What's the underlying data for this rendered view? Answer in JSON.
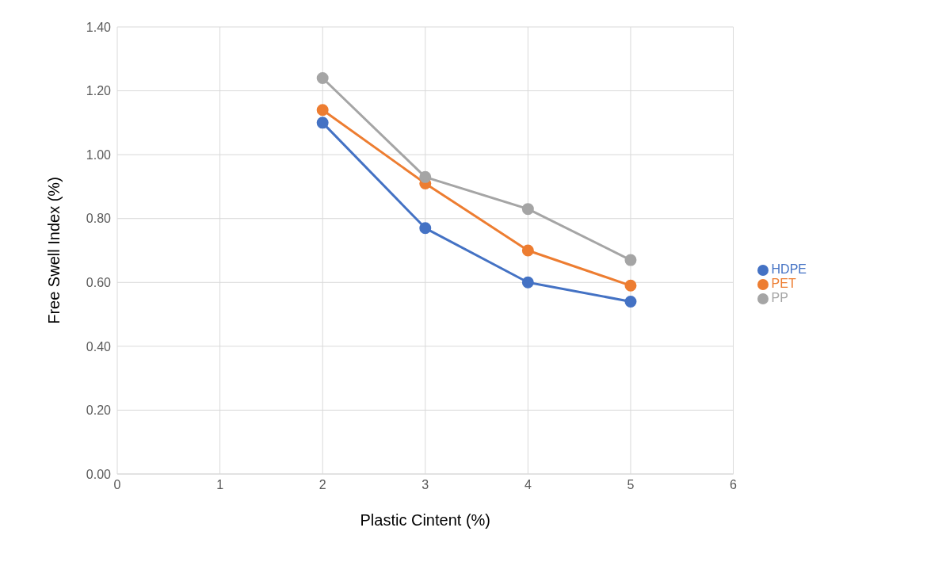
{
  "chart_data": {
    "type": "line",
    "xlabel": "Plastic Cintent (%)",
    "ylabel": "Free Swell Index (%)",
    "series": [
      {
        "name": "HDPE",
        "color": "#4472c4",
        "x": [
          2,
          3,
          4,
          5
        ],
        "values": [
          1.1,
          0.77,
          0.6,
          0.54
        ]
      },
      {
        "name": "PET",
        "color": "#ed7d31",
        "x": [
          2,
          3,
          4,
          5
        ],
        "values": [
          1.14,
          0.91,
          0.7,
          0.59
        ]
      },
      {
        "name": "PP",
        "color": "#a5a5a5",
        "x": [
          2,
          3,
          4,
          5
        ],
        "values": [
          1.24,
          0.93,
          0.83,
          0.67
        ]
      }
    ],
    "xlim": [
      0,
      6
    ],
    "xticks": [
      0,
      1,
      2,
      3,
      4,
      5,
      6
    ],
    "ylim": [
      0,
      1.4
    ],
    "yticks": [
      {
        "value": 0,
        "label": "0.00"
      },
      {
        "value": 0.2,
        "label": "0.20"
      },
      {
        "value": 0.4,
        "label": "0.40"
      },
      {
        "value": 0.6,
        "label": "0.60"
      },
      {
        "value": 0.8,
        "label": "0.80"
      },
      {
        "value": 1.0,
        "label": "1.00"
      },
      {
        "value": 1.2,
        "label": "1.20"
      },
      {
        "value": 1.4,
        "label": "1.40"
      }
    ],
    "grid": true,
    "legend": "right",
    "marker": "circle",
    "line_style": "solid"
  }
}
